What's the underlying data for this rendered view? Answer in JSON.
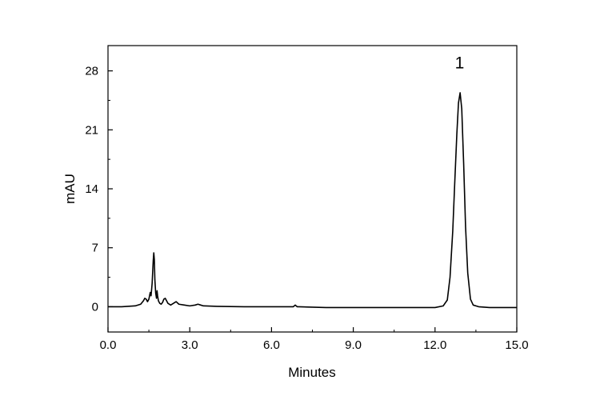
{
  "chart_data": {
    "type": "line",
    "title": "",
    "xlabel": "Minutes",
    "ylabel": "mAU",
    "xlim": [
      0,
      15
    ],
    "ylim": [
      -3,
      31
    ],
    "x_ticks": [
      0,
      3,
      6,
      9,
      12,
      15
    ],
    "x_tick_labels": [
      "0.0",
      "3.0",
      "6.0",
      "9.0",
      "12.0",
      "15.0"
    ],
    "y_ticks": [
      0,
      7,
      14,
      21,
      28
    ],
    "y_tick_labels": [
      "0",
      "7",
      "14",
      "21",
      "28"
    ],
    "grid": false,
    "legend": "none",
    "line_color": "#000000",
    "annotations": [
      {
        "text": "1",
        "x": 12.9,
        "y": 28.3
      }
    ],
    "series": [
      {
        "x": [
          0.0,
          0.5,
          1.0,
          1.2,
          1.3,
          1.35,
          1.4,
          1.45,
          1.5,
          1.55,
          1.58,
          1.62,
          1.66,
          1.68,
          1.7,
          1.72,
          1.75,
          1.78,
          1.8,
          1.82,
          1.85,
          1.9,
          1.95,
          2.0,
          2.05,
          2.1,
          2.15,
          2.2,
          2.3,
          2.4,
          2.5,
          2.6,
          2.8,
          3.0,
          3.2,
          3.3,
          3.4,
          3.5,
          4.0,
          5.0,
          6.0,
          6.8,
          6.87,
          6.94,
          7.0,
          8.0,
          9.0,
          10.0,
          11.0,
          12.0,
          12.3,
          12.45,
          12.55,
          12.65,
          12.72,
          12.8,
          12.86,
          12.92,
          12.98,
          13.05,
          13.12,
          13.2,
          13.3,
          13.4,
          13.6,
          14.0,
          14.5,
          15.0
        ],
        "y": [
          0.0,
          0.0,
          0.1,
          0.3,
          0.7,
          1.0,
          0.9,
          0.6,
          0.9,
          1.7,
          1.3,
          2.8,
          5.5,
          6.4,
          5.6,
          3.2,
          1.6,
          1.0,
          1.9,
          1.3,
          0.7,
          0.4,
          0.3,
          0.5,
          0.9,
          1.0,
          0.7,
          0.4,
          0.2,
          0.4,
          0.6,
          0.3,
          0.2,
          0.1,
          0.2,
          0.3,
          0.2,
          0.1,
          0.05,
          0.0,
          0.0,
          0.0,
          0.2,
          0.0,
          0.0,
          -0.1,
          -0.1,
          -0.1,
          -0.1,
          -0.1,
          0.1,
          0.8,
          3.5,
          9.0,
          14.5,
          20.5,
          24.2,
          25.4,
          23.5,
          17.0,
          9.5,
          4.0,
          0.9,
          0.2,
          0.0,
          -0.1,
          -0.1,
          -0.1
        ]
      }
    ]
  }
}
